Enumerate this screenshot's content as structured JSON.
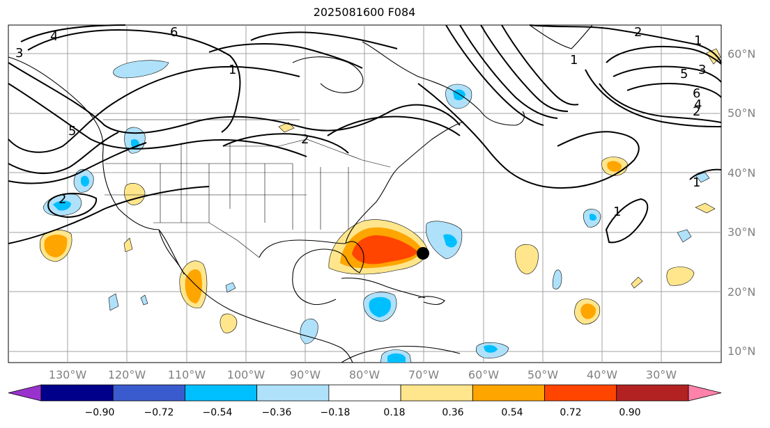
{
  "title": "2025081600 F084",
  "lat_labels": [
    "60°N",
    "50°N",
    "40°N",
    "30°N",
    "20°N",
    "10°N"
  ],
  "lon_labels": [
    "130°W",
    "120°W",
    "110°W",
    "100°W",
    "90°W",
    "80°W",
    "70°W",
    "60°W",
    "50°W",
    "40°W",
    "30°W"
  ],
  "contour_labels": [
    "6",
    "4",
    "3",
    "2",
    "2",
    "1",
    "2",
    "3",
    "5",
    "6",
    "4",
    "2",
    "1",
    "1",
    "1",
    "1",
    "5"
  ],
  "colorbar": {
    "colors": [
      "#9932cc",
      "#00008b",
      "#3a5bcd",
      "#00bfff",
      "#afe1fa",
      "#ffffff",
      "#ffe68c",
      "#ffa500",
      "#ff4500",
      "#b22222",
      "#ff82ab"
    ],
    "ticks": [
      "−0.90",
      "−0.72",
      "−0.54",
      "−0.36",
      "−0.18",
      "0.18",
      "0.36",
      "0.54",
      "0.72",
      "0.90"
    ]
  },
  "colors": {
    "grid": "#a0a0a0",
    "contour": "#000000",
    "marker": "#000000"
  }
}
